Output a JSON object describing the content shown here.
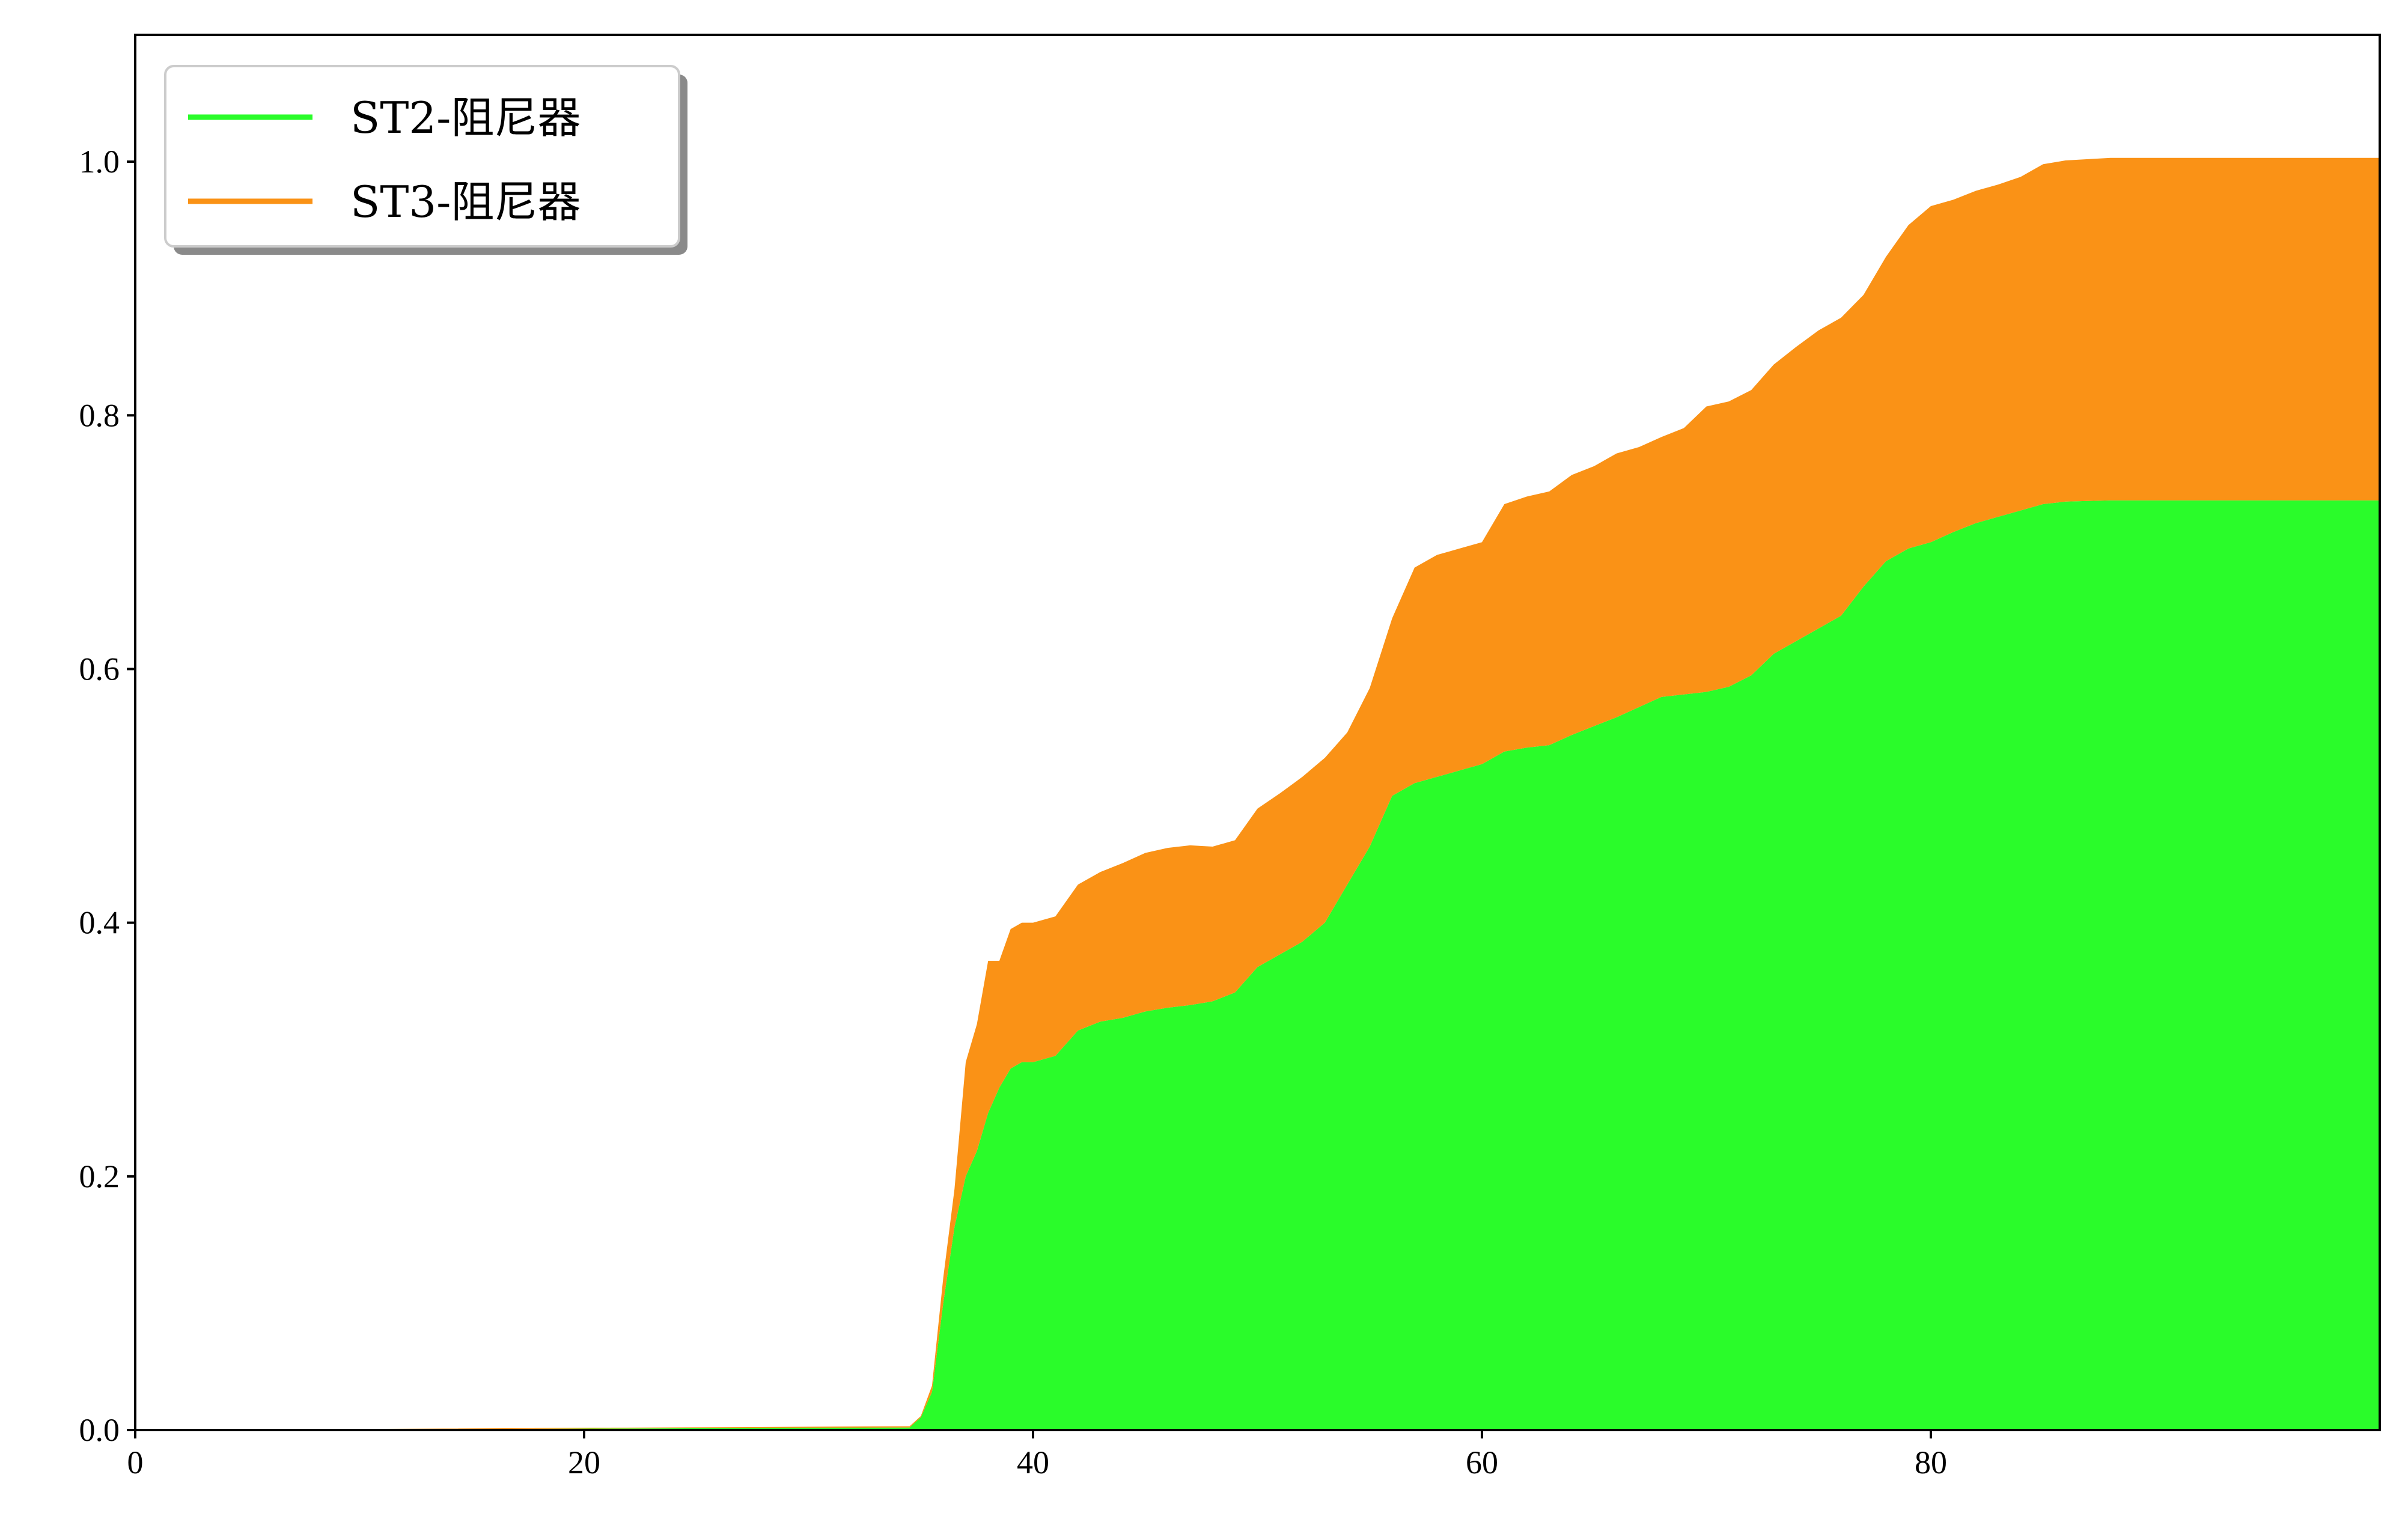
{
  "chart_data": {
    "type": "area",
    "stacked": true,
    "title": "",
    "xlabel": "",
    "ylabel": "",
    "xlim": [
      0,
      100
    ],
    "ylim": [
      0,
      1.1
    ],
    "xticks": [
      0,
      20,
      40,
      60,
      80
    ],
    "yticks": [
      0.0,
      0.2,
      0.4,
      0.6,
      0.8,
      1.0
    ],
    "xtick_labels": [
      "0",
      "20",
      "40",
      "60",
      "80"
    ],
    "ytick_labels": [
      "0.0",
      "0.2",
      "0.4",
      "0.6",
      "0.8",
      "1.0"
    ],
    "grid": false,
    "legend_position": "top-left",
    "x": [
      0,
      34.5,
      35,
      35.5,
      36,
      36.5,
      37,
      37.5,
      38,
      38.5,
      39,
      39.5,
      40,
      41,
      42,
      43,
      44,
      45,
      46,
      47,
      48,
      49,
      50,
      51,
      52,
      53,
      54,
      55,
      56,
      57,
      58,
      59,
      60,
      61,
      62,
      63,
      64,
      65,
      66,
      67,
      68,
      69,
      70,
      71,
      72,
      73,
      74,
      75,
      76,
      77,
      78,
      79,
      80,
      81,
      82,
      83,
      84,
      85,
      86,
      88,
      90,
      95,
      100
    ],
    "series": [
      {
        "name": "ST2-阻尼器",
        "color": "#2afc2a",
        "values": [
          0,
          0.002,
          0.01,
          0.03,
          0.1,
          0.16,
          0.2,
          0.22,
          0.25,
          0.27,
          0.285,
          0.29,
          0.29,
          0.295,
          0.315,
          0.322,
          0.325,
          0.33,
          0.333,
          0.335,
          0.338,
          0.345,
          0.365,
          0.375,
          0.385,
          0.4,
          0.43,
          0.46,
          0.5,
          0.51,
          0.515,
          0.52,
          0.525,
          0.535,
          0.538,
          0.54,
          0.548,
          0.555,
          0.562,
          0.57,
          0.578,
          0.58,
          0.582,
          0.586,
          0.595,
          0.612,
          0.622,
          0.632,
          0.642,
          0.665,
          0.685,
          0.695,
          0.7,
          0.708,
          0.715,
          0.72,
          0.725,
          0.73,
          0.732,
          0.733,
          0.733,
          0.733,
          0.733
        ]
      },
      {
        "name": "ST3-阻尼器",
        "color": "#fa9216",
        "values": [
          0,
          0.001,
          0.001,
          0.005,
          0.02,
          0.03,
          0.09,
          0.1,
          0.12,
          0.1,
          0.11,
          0.11,
          0.11,
          0.11,
          0.115,
          0.118,
          0.122,
          0.125,
          0.126,
          0.126,
          0.122,
          0.12,
          0.125,
          0.127,
          0.13,
          0.13,
          0.12,
          0.125,
          0.14,
          0.17,
          0.175,
          0.175,
          0.175,
          0.195,
          0.198,
          0.2,
          0.205,
          0.205,
          0.208,
          0.205,
          0.205,
          0.21,
          0.225,
          0.225,
          0.225,
          0.228,
          0.232,
          0.235,
          0.235,
          0.23,
          0.24,
          0.255,
          0.265,
          0.262,
          0.262,
          0.262,
          0.263,
          0.268,
          0.269,
          0.27,
          0.27,
          0.27,
          0.27
        ]
      }
    ]
  }
}
